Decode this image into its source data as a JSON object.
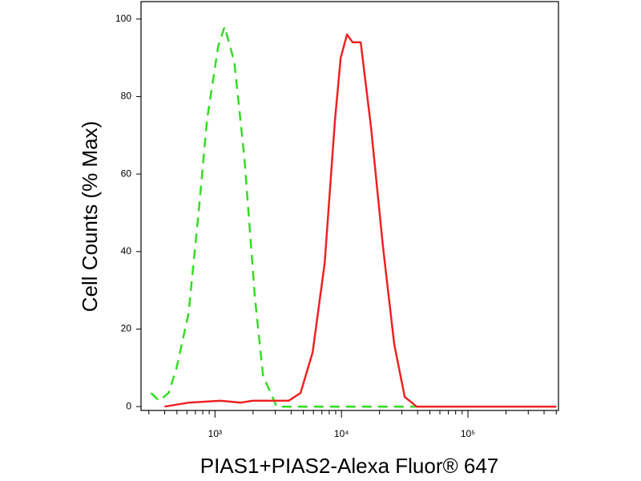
{
  "chart_data": {
    "type": "line",
    "xlabel": "PIAS1+PIAS2-Alexa Fluor® 647",
    "ylabel": "Cell Counts (% Max)",
    "xscale": "log",
    "xlim": [
      260,
      520000
    ],
    "ylim": [
      -1,
      104.5
    ],
    "xticks": [
      {
        "value": 1000,
        "label": "10³"
      },
      {
        "value": 10000,
        "label": "10⁴"
      },
      {
        "value": 100000,
        "label": "10⁵"
      }
    ],
    "xminorticks": [
      300,
      400,
      500,
      600,
      700,
      800,
      900,
      2000,
      3000,
      4000,
      5000,
      6000,
      7000,
      8000,
      9000,
      20000,
      30000,
      40000,
      50000,
      60000,
      70000,
      80000,
      90000,
      200000,
      300000,
      400000,
      500000
    ],
    "yticks": [
      0,
      20,
      40,
      60,
      80,
      100
    ],
    "grid": false,
    "series": [
      {
        "color": "#33dd22",
        "dash": true,
        "x": [
          312,
          361,
          430,
          497,
          618,
          747,
          865,
          1060,
          1190,
          1420,
          1710,
          2070,
          2400,
          3070,
          500000
        ],
        "values": [
          3.5,
          1.5,
          3.5,
          10,
          24,
          51,
          74,
          93,
          98,
          89,
          64,
          28,
          8,
          0,
          0
        ]
      },
      {
        "color": "#ee2222",
        "dash": false,
        "x": [
          399,
          618,
          1110,
          1590,
          1980,
          3820,
          4750,
          5920,
          7360,
          8890,
          9860,
          11070,
          12260,
          14190,
          17140,
          21330,
          26170,
          31620,
          39360,
          500000
        ],
        "values": [
          0,
          1,
          1.5,
          1,
          1.5,
          1.5,
          3.5,
          14,
          37,
          74,
          90,
          96,
          94,
          94,
          72,
          41,
          16,
          2.5,
          0,
          0
        ]
      }
    ]
  }
}
